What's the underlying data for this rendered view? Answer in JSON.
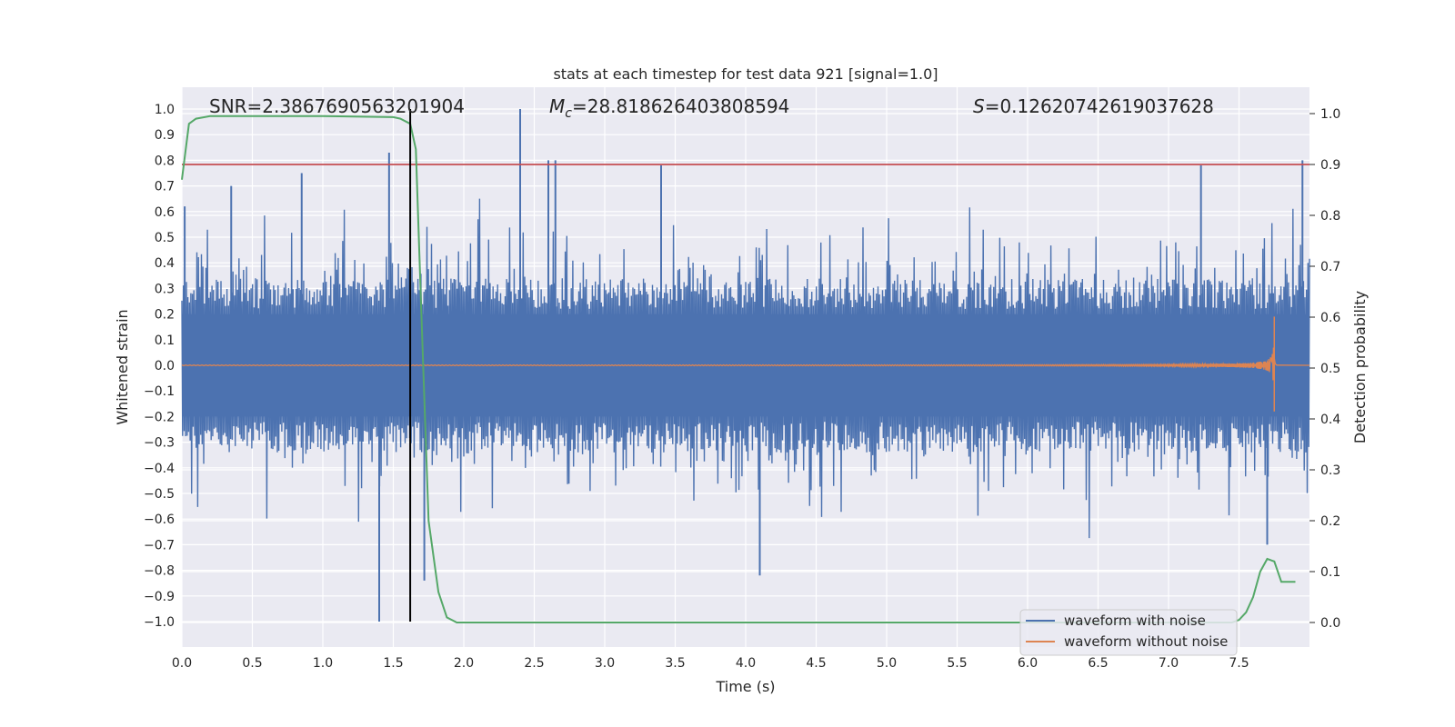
{
  "chart_data": {
    "type": "line",
    "title": "stats at each timestep for test data 921 [signal=1.0]",
    "xlabel": "Time (s)",
    "ylabel_left": "Whitened strain",
    "ylabel_right": "Detection probability",
    "xlim": [
      0.0,
      8.0
    ],
    "ylim_left": [
      -1.1,
      1.1
    ],
    "ylim_right": [
      -0.05,
      1.05
    ],
    "x_ticks": [
      "0.0",
      "0.5",
      "1.0",
      "1.5",
      "2.0",
      "2.5",
      "3.0",
      "3.5",
      "4.0",
      "4.5",
      "5.0",
      "5.5",
      "6.0",
      "6.5",
      "7.0",
      "7.5"
    ],
    "y_left_ticks": [
      "1.0",
      "0.9",
      "0.8",
      "0.7",
      "0.6",
      "0.5",
      "0.4",
      "0.3",
      "0.2",
      "0.1",
      "0.0",
      "−0.1",
      "−0.2",
      "−0.3",
      "−0.4",
      "−0.5",
      "−0.6",
      "−0.7",
      "−0.8",
      "−0.9",
      "−1.0"
    ],
    "y_right_ticks": [
      "1.0",
      "0.9",
      "0.8",
      "0.7",
      "0.6",
      "0.5",
      "0.4",
      "0.3",
      "0.2",
      "0.1",
      "0.0"
    ],
    "annotations": {
      "snr": "SNR=2.3867690563201904",
      "mc_symbol": "M",
      "mc_sub": "c",
      "mc_value": "=28.818626403808594",
      "s_symbol": "S",
      "s_value": "=0.12620742619037628"
    },
    "legend": {
      "position": "lower-right",
      "entries": [
        "waveform with noise",
        "waveform without noise"
      ]
    },
    "threshold_line": {
      "axis": "right",
      "value": 0.9,
      "color": "#c44e52"
    },
    "vertical_marker": {
      "x": 1.62,
      "color": "#000000"
    },
    "series": [
      {
        "name": "waveform with noise",
        "axis": "left",
        "color": "#4c72b0",
        "description": "noisy whitened strain, dense band roughly within ±0.4 with spikes up to ±1.0",
        "peaks": [
          [
            0.02,
            0.62
          ],
          [
            0.35,
            0.7
          ],
          [
            0.85,
            0.75
          ],
          [
            1.47,
            0.83
          ],
          [
            1.4,
            -1.0
          ],
          [
            1.72,
            -0.84
          ],
          [
            2.4,
            1.0
          ],
          [
            2.6,
            0.8
          ],
          [
            2.65,
            0.8
          ],
          [
            3.4,
            0.78
          ],
          [
            4.1,
            -0.82
          ],
          [
            7.23,
            0.78
          ],
          [
            7.95,
            0.8
          ],
          [
            7.7,
            -0.7
          ]
        ]
      },
      {
        "name": "waveform without noise",
        "axis": "left",
        "color": "#dd8452",
        "description": "clean chirp waveform, amplitude growing to merger near t≈7.75 s",
        "peak": [
          7.75,
          0.19
        ],
        "trough": [
          7.75,
          -0.18
        ]
      },
      {
        "name": "detection probability",
        "axis": "right",
        "color": "#55a868",
        "x": [
          0.0,
          0.05,
          0.1,
          0.2,
          0.5,
          1.0,
          1.5,
          1.55,
          1.62,
          1.66,
          1.7,
          1.75,
          1.82,
          1.88,
          1.95,
          2.0,
          3.0,
          4.0,
          5.0,
          6.0,
          7.0,
          7.45,
          7.5,
          7.55,
          7.6,
          7.65,
          7.7,
          7.75,
          7.8,
          7.85,
          7.9
        ],
        "y": [
          0.87,
          0.98,
          0.99,
          0.995,
          0.995,
          0.995,
          0.993,
          0.99,
          0.98,
          0.93,
          0.6,
          0.2,
          0.06,
          0.01,
          0.0,
          0.0,
          0.0,
          0.0,
          0.0,
          0.0,
          0.0,
          0.0,
          0.005,
          0.02,
          0.05,
          0.1,
          0.125,
          0.12,
          0.08,
          0.08,
          0.08
        ]
      }
    ]
  }
}
